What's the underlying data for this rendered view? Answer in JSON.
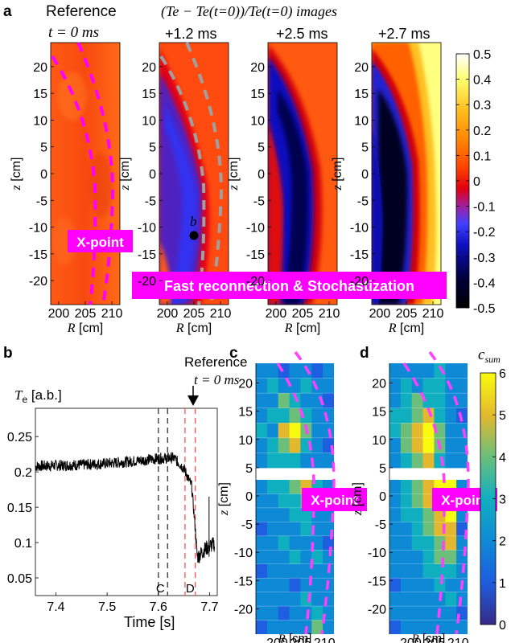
{
  "panel_a": {
    "label": "a",
    "title_left": [
      "Reference",
      "t = 0 ms"
    ],
    "title_main": "(Te − Te(t=0))/Te(t=0) images",
    "subplots": [
      {
        "id": "ref",
        "title": "",
        "kind": "ref"
      },
      {
        "id": "p12",
        "title": "+1.2 ms",
        "kind": "t1"
      },
      {
        "id": "p25",
        "title": "+2.5 ms",
        "kind": "t2"
      },
      {
        "id": "p27",
        "title": "+2.7 ms",
        "kind": "t3"
      }
    ],
    "ylabel": "z [cm]",
    "xlabel": "R [cm]",
    "xticks": [
      "200",
      "205",
      "210"
    ],
    "yticks": [
      "20",
      "15",
      "10",
      "5",
      "0",
      "-5",
      "-10",
      "-15",
      "-20"
    ],
    "xpoint_label": "X-point",
    "point_b_label": "b",
    "banner": "Fast reconnection & Stochastization",
    "colorbar_ticks": [
      "0.5",
      "0.4",
      "0.3",
      "0.2",
      "0.1",
      "0",
      "-0.1",
      "-0.2",
      "-0.3",
      "-0.4",
      "-0.5"
    ],
    "colors": {
      "magenta": "#ff00ff",
      "dashed_gray": "#a0a0a0"
    }
  },
  "panel_b": {
    "label": "b",
    "ylabel": "Te [a.b.]",
    "xlabel": "Time [s]",
    "xticks": [
      "7.4",
      "7.5",
      "7.6",
      "7.7"
    ],
    "yticks": [
      "0.25",
      "0.2",
      "0.15",
      "0.1",
      "0.05"
    ],
    "reference_text": [
      "Reference",
      "t = 0 ms"
    ],
    "marker_c": "C",
    "marker_d": "D",
    "chart_data": {
      "type": "line",
      "xlim": [
        7.36,
        7.715
      ],
      "ylim": [
        0.025,
        0.29
      ],
      "x": [
        7.36,
        7.4,
        7.45,
        7.5,
        7.55,
        7.6,
        7.63,
        7.65,
        7.665,
        7.672,
        7.676,
        7.68,
        7.69,
        7.7,
        7.71
      ],
      "y": [
        0.208,
        0.209,
        0.21,
        0.212,
        0.215,
        0.219,
        0.22,
        0.205,
        0.18,
        0.12,
        0.08,
        0.082,
        0.09,
        0.095,
        0.098
      ],
      "noise_amplitude": 0.008,
      "vlines_black": [
        7.6,
        7.618
      ],
      "vlines_red": [
        7.652,
        7.672
      ],
      "reference_time": 7.672
    }
  },
  "panel_c": {
    "label": "c",
    "ylabel": "z [cm]",
    "xlabel": "R [cm]",
    "xticks": [
      "200",
      "205",
      "210"
    ],
    "yticks": [
      "20",
      "15",
      "10",
      "5",
      "0",
      "-5",
      "-10",
      "-15",
      "-20"
    ],
    "xpoint_label": "X-point"
  },
  "panel_d": {
    "label": "d",
    "ylabel": "z [cm]",
    "xlabel": "R [cm]",
    "xticks": [
      "200",
      "205",
      "210"
    ],
    "yticks": [
      "20",
      "15",
      "10",
      "5",
      "0",
      "-5",
      "-10",
      "-15",
      "-20"
    ],
    "xpoint_label": "X-point",
    "colorbar_title": "c_sum",
    "colorbar_ticks": [
      "6",
      "5",
      "4",
      "3",
      "2",
      "1",
      "0"
    ]
  },
  "chart_data": {
    "type": "heatmap",
    "grid_c_upper": [
      [
        2,
        2,
        1,
        2,
        2,
        1,
        2
      ],
      [
        2,
        3,
        2,
        2,
        3,
        2,
        2
      ],
      [
        2,
        2,
        4,
        3,
        2,
        2,
        1
      ],
      [
        2,
        3,
        3,
        4,
        3,
        2,
        2
      ],
      [
        3,
        2,
        5,
        6,
        4,
        2,
        2
      ],
      [
        2,
        3,
        4,
        5,
        3,
        2,
        1
      ],
      [
        2,
        3,
        3,
        3,
        2,
        2,
        2
      ]
    ],
    "grid_c_lower": [
      [
        2,
        3,
        3,
        4,
        5,
        3,
        2
      ],
      [
        2,
        2,
        3,
        3,
        4,
        2,
        1
      ],
      [
        2,
        2,
        2,
        3,
        3,
        2,
        2
      ],
      [
        1,
        2,
        2,
        2,
        3,
        2,
        2
      ],
      [
        2,
        2,
        3,
        2,
        2,
        2,
        1
      ],
      [
        2,
        2,
        2,
        3,
        2,
        3,
        2
      ],
      [
        1,
        2,
        2,
        2,
        2,
        2,
        2
      ],
      [
        2,
        2,
        2,
        1,
        2,
        2,
        2
      ],
      [
        2,
        2,
        2,
        2,
        3,
        2,
        2
      ],
      [
        2,
        2,
        1,
        2,
        2,
        3,
        2
      ],
      [
        1,
        2,
        2,
        2,
        2,
        4,
        2
      ]
    ],
    "grid_d_upper": [
      [
        2,
        2,
        2,
        2,
        3,
        2,
        2
      ],
      [
        2,
        3,
        2,
        3,
        3,
        2,
        2
      ],
      [
        2,
        3,
        4,
        3,
        3,
        2,
        2
      ],
      [
        3,
        3,
        4,
        5,
        3,
        2,
        1
      ],
      [
        3,
        4,
        5,
        6,
        4,
        2,
        2
      ],
      [
        2,
        4,
        5,
        6,
        4,
        2,
        2
      ],
      [
        2,
        3,
        4,
        5,
        3,
        2,
        2
      ]
    ],
    "grid_d_lower": [
      [
        2,
        3,
        4,
        5,
        6,
        6,
        2
      ],
      [
        2,
        3,
        4,
        5,
        6,
        5,
        2
      ],
      [
        2,
        3,
        3,
        4,
        5,
        6,
        2
      ],
      [
        2,
        2,
        3,
        4,
        5,
        5,
        1
      ],
      [
        2,
        2,
        3,
        3,
        4,
        5,
        2
      ],
      [
        2,
        2,
        2,
        3,
        4,
        4,
        2
      ],
      [
        2,
        2,
        2,
        3,
        3,
        3,
        2
      ],
      [
        1,
        2,
        2,
        2,
        3,
        2,
        2
      ],
      [
        2,
        2,
        2,
        2,
        2,
        3,
        2
      ],
      [
        2,
        2,
        2,
        2,
        2,
        2,
        1
      ],
      [
        1,
        2,
        2,
        2,
        2,
        2,
        2
      ]
    ]
  }
}
